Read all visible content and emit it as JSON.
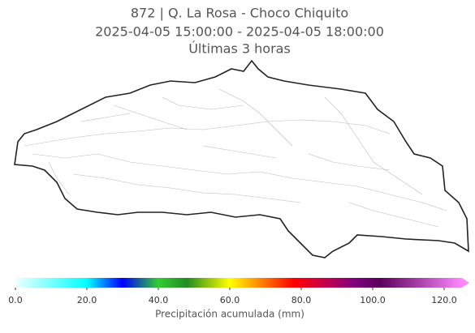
{
  "title": [
    "872 | Q. La Rosa - Choco Chiquito",
    "2025-04-05 15:00:00 - 2025-04-05 18:00:00",
    "Últimas 3 horas"
  ],
  "colorbar": {
    "label": "Precipitación acumulada (mm)",
    "clim": [
      0,
      125
    ],
    "ticks": [
      {
        "value": 0,
        "label": "0.0"
      },
      {
        "value": 20,
        "label": "20.0"
      },
      {
        "value": 40,
        "label": "40.0"
      },
      {
        "value": 60,
        "label": "60.0"
      },
      {
        "value": 80,
        "label": "80.0"
      },
      {
        "value": 100,
        "label": "100.0"
      },
      {
        "value": 120,
        "label": "120.0"
      }
    ],
    "stops": [
      {
        "value": 0,
        "color": "#f0ffff"
      },
      {
        "value": 20,
        "color": "#00ffff"
      },
      {
        "value": 30,
        "color": "#0000ff"
      },
      {
        "value": 40,
        "color": "#32cd32"
      },
      {
        "value": 48,
        "color": "#228b22"
      },
      {
        "value": 60,
        "color": "#ffff00"
      },
      {
        "value": 68,
        "color": "#ff8c00"
      },
      {
        "value": 78,
        "color": "#ff0000"
      },
      {
        "value": 86,
        "color": "#c80046"
      },
      {
        "value": 95,
        "color": "#800080"
      },
      {
        "value": 102,
        "color": "#5a005a"
      },
      {
        "value": 125,
        "color": "#ff88ff"
      }
    ]
  }
}
